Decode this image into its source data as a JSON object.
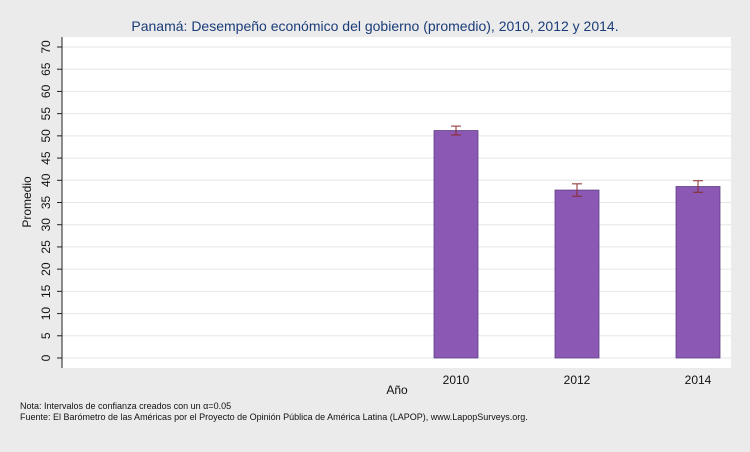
{
  "chart_data": {
    "type": "bar",
    "title": "Panamá: Desempeño económico del gobierno (promedio), 2010, 2012 y 2014.",
    "xlabel": "Año",
    "ylabel": "Promedio",
    "categories": [
      "2010",
      "2012",
      "2014"
    ],
    "values": [
      51.2,
      37.8,
      38.6
    ],
    "ci_low": [
      50.2,
      36.4,
      37.3
    ],
    "ci_high": [
      52.2,
      39.2,
      39.9
    ],
    "ylim": [
      0,
      70
    ],
    "yticks": [
      0,
      5,
      10,
      15,
      20,
      25,
      30,
      35,
      40,
      45,
      50,
      55,
      60,
      65,
      70
    ],
    "grid": true,
    "colors": {
      "bar": "#8b58b3",
      "bar_edge": "#5e3f86",
      "error_bar": "#8b2b2b",
      "plot_background": "#ffffff",
      "grid": "#e6e6e6",
      "title": "#1a3c78"
    }
  },
  "notes": {
    "note_prefix": "Nota: Intervalos de confianza creados con un ",
    "alpha_symbol": "α",
    "note_suffix": "=0.05",
    "source": "Fuente: El Barómetro de las Américas por el Proyecto de Opinión Pública de América Latina (LAPOP), www.LapopSurveys.org."
  }
}
